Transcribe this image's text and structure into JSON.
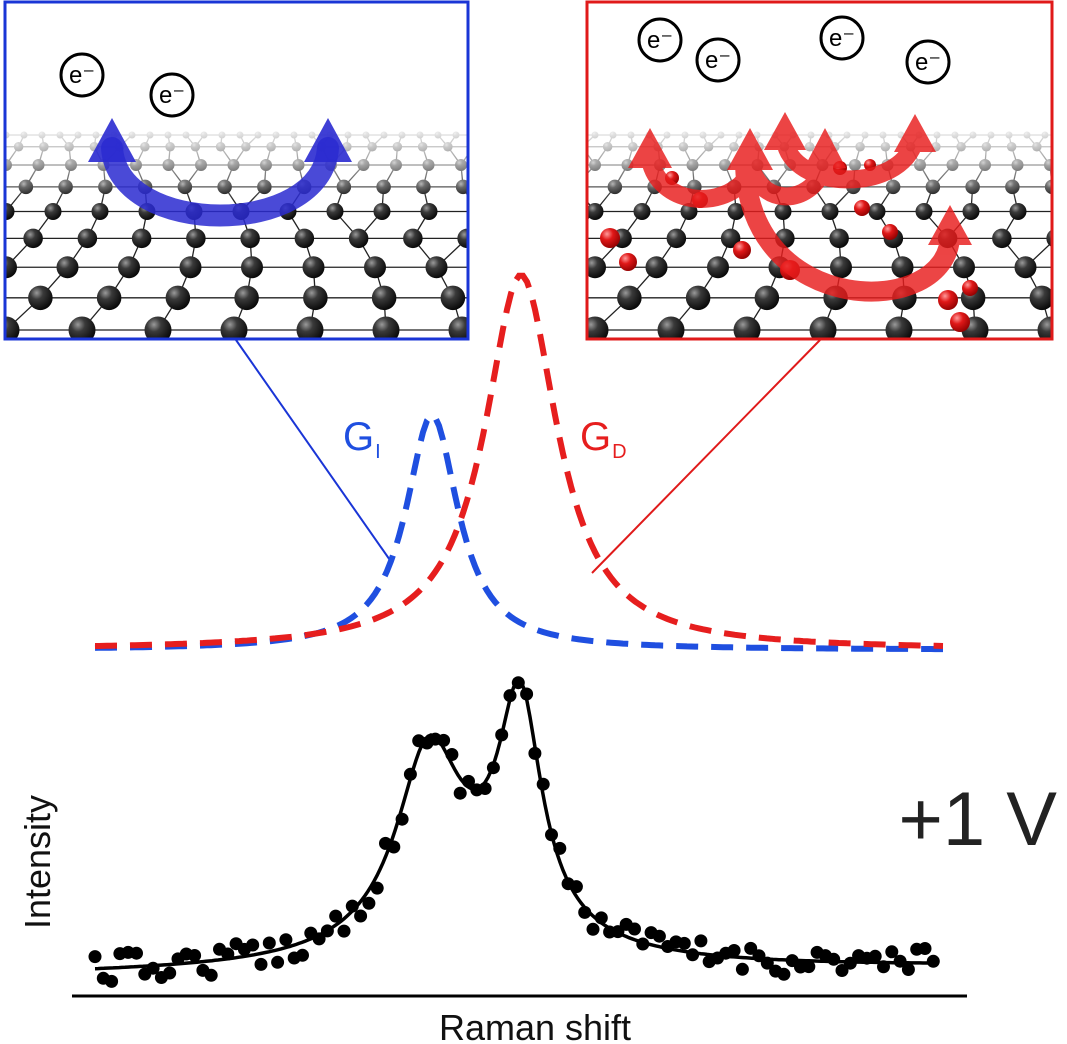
{
  "panels": {
    "left": {
      "electron_label": "e⁻",
      "electron_count": 2,
      "frame_color": "#1a35d6",
      "arrow_color": "#2a2ad0"
    },
    "right": {
      "electron_label": "e⁻",
      "electron_count": 4,
      "frame_color": "#e01a1a",
      "arrow_color": "#e81c1c"
    }
  },
  "peaks": {
    "left": {
      "letter": "G",
      "subscript": "I",
      "color": "#1f4fe0"
    },
    "right": {
      "letter": "G",
      "subscript": "D",
      "color": "#e61e1e"
    }
  },
  "voltage_label": "+1 V",
  "axes": {
    "xlabel": "Raman shift",
    "ylabel": "Intensity"
  },
  "colors": {
    "lattice_atom": "#1a1a1a",
    "defect_atom": "#d81818",
    "data": "#000000"
  }
}
